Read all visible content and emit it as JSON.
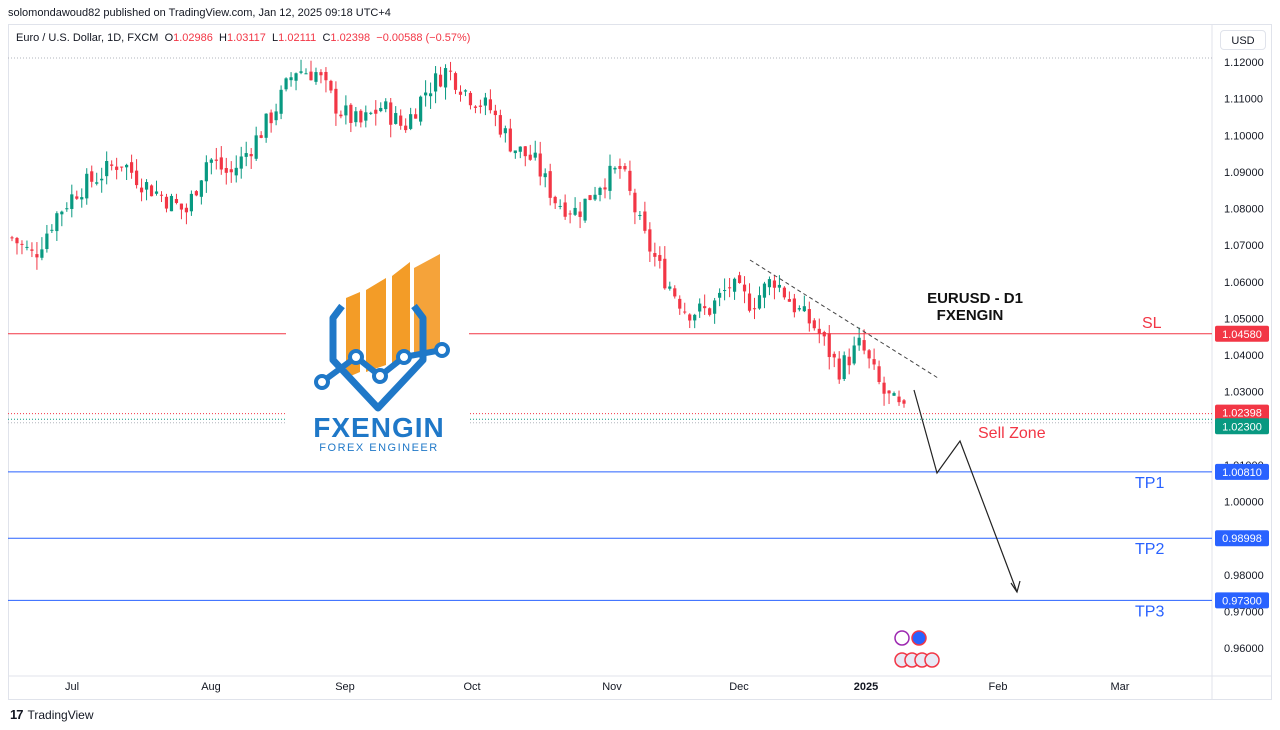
{
  "header": {
    "publisher_line": "solomondawoud82 published on TradingView.com, Jan 12, 2025 09:18 UTC+4"
  },
  "legend": {
    "symbol": "Euro / U.S. Dollar, 1D, FXCM",
    "open_label": "O",
    "open": "1.02986",
    "high_label": "H",
    "high": "1.03117",
    "low_label": "L",
    "low": "1.02111",
    "close_label": "C",
    "close": "1.02398",
    "change": "−0.00588 (−0.57%)"
  },
  "currency_button": "USD",
  "footer": {
    "brand": "TradingView"
  },
  "logo": {
    "name": "FXENGIN",
    "tagline": "FOREX ENGINEER"
  },
  "colors": {
    "up": "#089981",
    "down": "#f23645",
    "blue_line": "#2962ff",
    "sl_line": "#f23645",
    "logo_blue": "#1f78c8",
    "logo_orange": "#f39c27"
  },
  "chart_data": {
    "type": "candlestick",
    "title": "EURUSD - D1",
    "subtitle": "FXENGIN",
    "ylim": [
      0.9505,
      1.1268
    ],
    "y_ticks": [
      "1.12000",
      "1.11000",
      "1.10000",
      "1.09000",
      "1.08000",
      "1.07000",
      "1.06000",
      "1.05000",
      "1.04000",
      "1.03000",
      "1.02000",
      "1.01000",
      "1.00000",
      "0.99000",
      "0.98000",
      "0.97000",
      "0.96000"
    ],
    "x_ticks": [
      "Jul",
      "Aug",
      "Sep",
      "Oct",
      "Nov",
      "Dec",
      "2025",
      "Feb",
      "Mar"
    ],
    "price_labels": [
      {
        "value": 1.0458,
        "text": "1.04580",
        "color": "#f23645"
      },
      {
        "value": 1.02398,
        "text": "1.02398",
        "color": "#f23645"
      },
      {
        "value": 1.023,
        "text": "1.02300",
        "color": "#089981"
      },
      {
        "value": 1.0081,
        "text": "1.00810",
        "color": "#2962ff"
      },
      {
        "value": 0.98998,
        "text": "0.98998",
        "color": "#2962ff"
      },
      {
        "value": 0.973,
        "text": "0.97300",
        "color": "#2962ff"
      }
    ],
    "levels": [
      {
        "name": "SL",
        "value": 1.0458,
        "color": "#f23645"
      },
      {
        "name": "TP1",
        "value": 1.0081,
        "color": "#2962ff"
      },
      {
        "name": "TP2",
        "value": 0.98998,
        "color": "#2962ff"
      },
      {
        "name": "TP3",
        "value": 0.973,
        "color": "#2962ff"
      }
    ],
    "zone_label": "Sell Zone",
    "anchors": [
      1.072,
      1.067,
      1.078,
      1.085,
      1.089,
      1.093,
      1.087,
      1.083,
      1.079,
      1.094,
      1.089,
      1.097,
      1.106,
      1.118,
      1.117,
      1.107,
      1.103,
      1.108,
      1.102,
      1.112,
      1.118,
      1.111,
      1.107,
      1.097,
      1.093,
      1.082,
      1.079,
      1.087,
      1.091,
      1.073,
      1.061,
      1.052,
      1.052,
      1.059,
      1.054,
      1.061,
      1.053,
      1.047,
      1.036,
      1.043,
      1.03,
      1.024
    ],
    "candles": 180
  }
}
